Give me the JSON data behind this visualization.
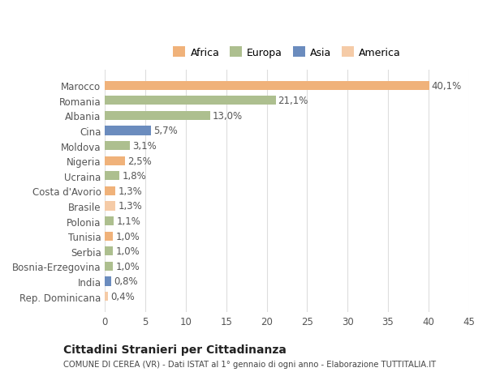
{
  "categories": [
    "Marocco",
    "Romania",
    "Albania",
    "Cina",
    "Moldova",
    "Nigeria",
    "Ucraina",
    "Costa d'Avorio",
    "Brasile",
    "Polonia",
    "Tunisia",
    "Serbia",
    "Bosnia-Erzegovina",
    "India",
    "Rep. Dominicana"
  ],
  "values": [
    40.1,
    21.1,
    13.0,
    5.7,
    3.1,
    2.5,
    1.8,
    1.3,
    1.3,
    1.1,
    1.0,
    1.0,
    1.0,
    0.8,
    0.4
  ],
  "labels": [
    "40,1%",
    "21,1%",
    "13,0%",
    "5,7%",
    "3,1%",
    "2,5%",
    "1,8%",
    "1,3%",
    "1,3%",
    "1,1%",
    "1,0%",
    "1,0%",
    "1,0%",
    "0,8%",
    "0,4%"
  ],
  "continents": [
    "Africa",
    "Europa",
    "Europa",
    "Asia",
    "Europa",
    "Africa",
    "Europa",
    "Africa",
    "America",
    "Europa",
    "Africa",
    "Europa",
    "Europa",
    "Asia",
    "America"
  ],
  "continent_colors": {
    "Africa": "#F0B27A",
    "Europa": "#ADBF8F",
    "Asia": "#6B8CBE",
    "America": "#F5CBA7"
  },
  "legend_order": [
    "Africa",
    "Europa",
    "Asia",
    "America"
  ],
  "xlim": [
    0,
    45
  ],
  "xticks": [
    0,
    5,
    10,
    15,
    20,
    25,
    30,
    35,
    40,
    45
  ],
  "title": "Cittadini Stranieri per Cittadinanza",
  "subtitle": "COMUNE DI CEREA (VR) - Dati ISTAT al 1° gennaio di ogni anno - Elaborazione TUTTITALIA.IT",
  "background_color": "#FFFFFF",
  "bar_height": 0.6,
  "grid_color": "#DDDDDD",
  "label_fontsize": 8.5,
  "ytick_fontsize": 8.5,
  "xtick_fontsize": 8.5
}
